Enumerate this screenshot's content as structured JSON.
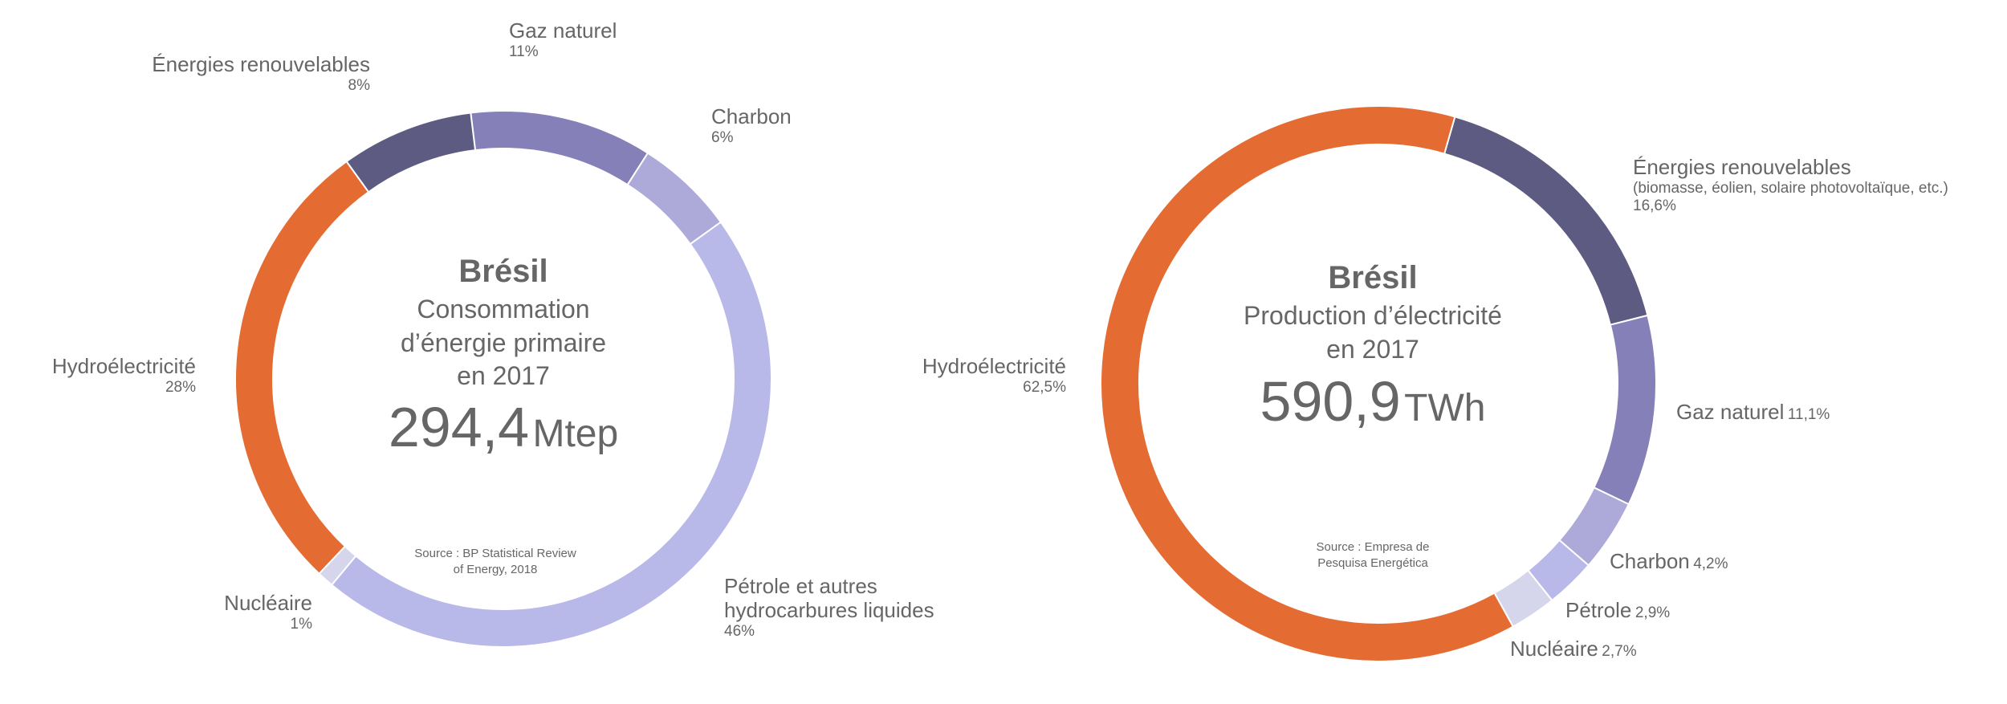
{
  "chart_data": [
    {
      "type": "pie",
      "variant": "donut",
      "title": "Brésil",
      "subtitle": [
        "Consommation",
        "d’énergie primaire",
        "en 2017"
      ],
      "total_value": "294,4",
      "total_unit": "Mtep",
      "source": [
        "Source : BP Statistical Review",
        "of Energy, 2018"
      ],
      "start_angle_deg": -7,
      "slices": [
        {
          "label": "Gaz naturel",
          "value": 11,
          "display": "11%",
          "color": "#8580B8"
        },
        {
          "label": "Charbon",
          "value": 6,
          "display": "6%",
          "color": "#ADA9D8"
        },
        {
          "label": "Pétrole et autres hydrocarbures liquides",
          "label_lines": [
            "Pétrole et autres",
            "hydrocarbures liquides"
          ],
          "value": 46,
          "display": "46%",
          "color": "#B9B9E9"
        },
        {
          "label": "Nucléaire",
          "value": 1,
          "display": "1%",
          "color": "#D5D5EB"
        },
        {
          "label": "Hydroélectricité",
          "value": 28,
          "display": "28%",
          "color": "#E46C33"
        },
        {
          "label": "Énergies renouvelables",
          "value": 8,
          "display": "8%",
          "color": "#5D5B81"
        }
      ]
    },
    {
      "type": "pie",
      "variant": "donut",
      "title": "Brésil",
      "subtitle": [
        "Production d’électricité",
        "en 2017"
      ],
      "total_value": "590,9",
      "total_unit": "TWh",
      "source": [
        "Source : Empresa de",
        "Pesquisa Energética"
      ],
      "start_angle_deg": 16,
      "slices": [
        {
          "label": "Énergies renouvelables",
          "note": "(biomasse, éolien, solaire photovoltaïque, etc.)",
          "value": 16.6,
          "display": "16,6%",
          "color": "#5D5B81"
        },
        {
          "label": "Gaz naturel",
          "value": 11.1,
          "display": "11,1%",
          "color": "#8580B8"
        },
        {
          "label": "Charbon",
          "value": 4.2,
          "display": "4,2%",
          "color": "#ADA9D8"
        },
        {
          "label": "Pétrole",
          "value": 2.9,
          "display": "2,9%",
          "color": "#B9B9E9"
        },
        {
          "label": "Nucléaire",
          "value": 2.7,
          "display": "2,7%",
          "color": "#D5D5EB"
        },
        {
          "label": "Hydroélectricité",
          "value": 62.5,
          "display": "62,5%",
          "color": "#E46C33"
        }
      ]
    }
  ]
}
